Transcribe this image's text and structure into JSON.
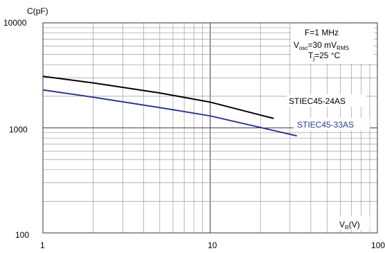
{
  "chart_data": {
    "type": "line",
    "title": "",
    "ylabel_main": "C(pF)",
    "ylabel_sub": "",
    "xlabel_main": "V",
    "xlabel_sub": "R",
    "xlabel_tail": "(V)",
    "xscale": "log",
    "yscale": "log",
    "xlim": [
      1,
      100
    ],
    "ylim": [
      100,
      10000
    ],
    "grid": true,
    "x_ticks": [
      "1",
      "10",
      "100"
    ],
    "y_ticks": [
      "100",
      "1000",
      "10000"
    ],
    "series": [
      {
        "name": "STIEC45-24AS",
        "color": "#000000",
        "x": [
          1,
          2,
          5,
          10,
          24
        ],
        "y": [
          3100,
          2680,
          2150,
          1760,
          1230
        ]
      },
      {
        "name": "STIEC45-33AS",
        "color": "#2e3a8c",
        "x": [
          1,
          2,
          5,
          10,
          33
        ],
        "y": [
          2300,
          1960,
          1560,
          1300,
          840
        ]
      }
    ],
    "conditions": {
      "line1": "F=1 MHz",
      "line2_main": "V",
      "line2_sub": "osc",
      "line2_mid": "=30 mV",
      "line2_sub2": "RMS",
      "line3_main": "T",
      "line3_sub": "j",
      "line3_tail": "=25 °C"
    }
  }
}
